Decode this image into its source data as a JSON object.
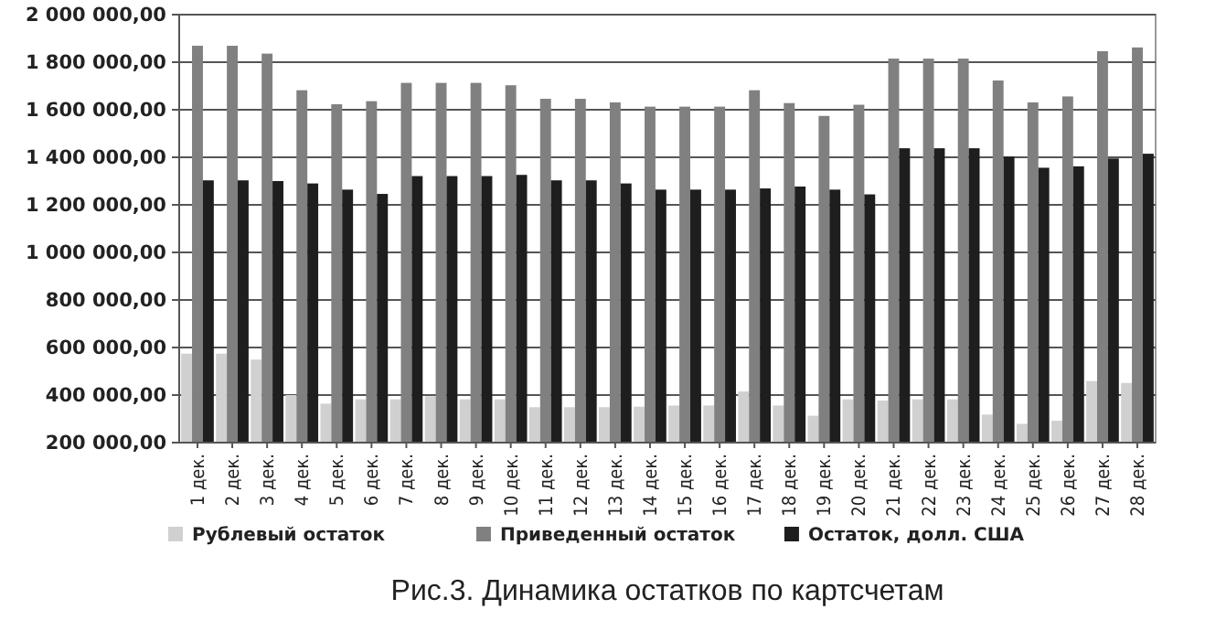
{
  "chart_data": {
    "type": "bar",
    "categories": [
      "1 дек.",
      "2 дек.",
      "3 дек.",
      "4 дек.",
      "5 дек.",
      "6 дек.",
      "7 дек.",
      "8 дек.",
      "9 дек.",
      "10 дек.",
      "11 дек.",
      "12 дек.",
      "13 дек.",
      "14 дек.",
      "15 дек.",
      "16 дек.",
      "17 дек.",
      "18 дек.",
      "19 дек.",
      "20 дек.",
      "21 дек.",
      "22 дек.",
      "23 дек.",
      "24 дек.",
      "25 дек.",
      "26 дек.",
      "27 дек.",
      "28 дек."
    ],
    "series": [
      {
        "name": "Рублевый остаток",
        "color": "#d0d0d0",
        "values": [
          574000,
          574000,
          549000,
          400000,
          364000,
          382000,
          382000,
          395000,
          382000,
          382000,
          349000,
          349000,
          349000,
          351000,
          356000,
          356000,
          415000,
          356000,
          313000,
          382000,
          377000,
          382000,
          382000,
          318000,
          279000,
          292000,
          459000,
          451000
        ]
      },
      {
        "name": "Приведенный остаток",
        "color": "#808080",
        "values": [
          1869000,
          1869000,
          1836000,
          1682000,
          1623000,
          1636000,
          1713000,
          1713000,
          1713000,
          1703000,
          1646000,
          1646000,
          1631000,
          1613000,
          1613000,
          1613000,
          1682000,
          1628000,
          1574000,
          1621000,
          1815000,
          1815000,
          1815000,
          1723000,
          1631000,
          1656000,
          1846000,
          1862000
        ]
      },
      {
        "name": "Остаток, долл. США",
        "color": "#1e1e1e",
        "values": [
          1303000,
          1303000,
          1300000,
          1290000,
          1264000,
          1246000,
          1321000,
          1321000,
          1321000,
          1326000,
          1303000,
          1303000,
          1290000,
          1264000,
          1264000,
          1264000,
          1269000,
          1277000,
          1264000,
          1244000,
          1438000,
          1438000,
          1438000,
          1403000,
          1356000,
          1362000,
          1395000,
          1415000
        ]
      }
    ],
    "ylim": [
      200000,
      2000000
    ],
    "yticks": [
      {
        "value": 200000,
        "label": "200 000,00"
      },
      {
        "value": 400000,
        "label": "400 000,00"
      },
      {
        "value": 600000,
        "label": "600 000,00"
      },
      {
        "value": 800000,
        "label": "800 000,00"
      },
      {
        "value": 1000000,
        "label": "1 000 000,00"
      },
      {
        "value": 1200000,
        "label": "1 200 000,00"
      },
      {
        "value": 1400000,
        "label": "1 400 000,00"
      },
      {
        "value": 1600000,
        "label": "1 600 000,00"
      },
      {
        "value": 1800000,
        "label": "1 800 000,00"
      },
      {
        "value": 2000000,
        "label": "2 000 000,00"
      }
    ],
    "grid": "y",
    "legend": "bottom",
    "annotations": [
      "Рис.3. Динамика остатков по картсчетам"
    ]
  }
}
